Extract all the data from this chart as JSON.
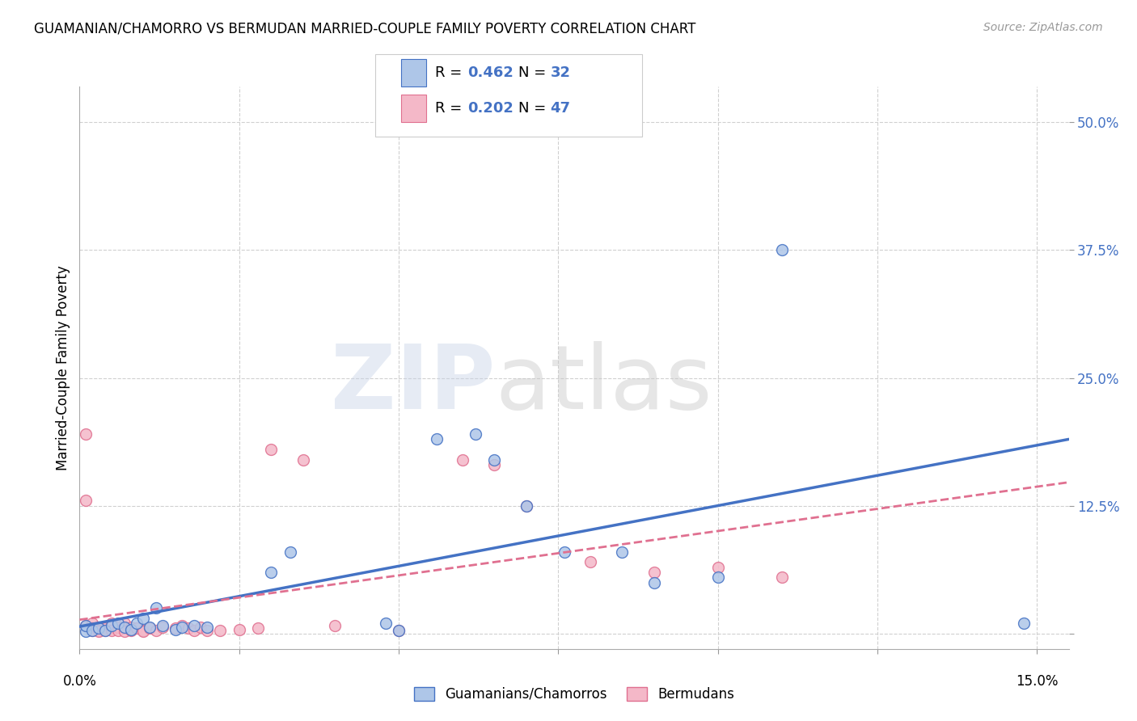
{
  "title": "GUAMANIAN/CHAMORRO VS BERMUDAN MARRIED-COUPLE FAMILY POVERTY CORRELATION CHART",
  "source": "Source: ZipAtlas.com",
  "ylabel": "Married-Couple Family Poverty",
  "legend_label1": "Guamanians/Chamorros",
  "legend_label2": "Bermudans",
  "R1": "0.462",
  "N1": "32",
  "R2": "0.202",
  "N2": "47",
  "xlim": [
    0.0,
    0.155
  ],
  "ylim": [
    -0.015,
    0.535
  ],
  "ytick_vals": [
    0.0,
    0.125,
    0.25,
    0.375,
    0.5
  ],
  "ytick_labels": [
    "",
    "12.5%",
    "25.0%",
    "37.5%",
    "50.0%"
  ],
  "xtick_vals": [
    0.0,
    0.025,
    0.05,
    0.075,
    0.1,
    0.125,
    0.15
  ],
  "color_blue": "#aec6e8",
  "color_pink": "#f4b8c8",
  "line_blue": "#4472c4",
  "line_pink": "#e07090",
  "grid_color": "#d0d0d0",
  "guamanian_x": [
    0.001,
    0.001,
    0.002,
    0.003,
    0.004,
    0.005,
    0.006,
    0.007,
    0.008,
    0.009,
    0.01,
    0.011,
    0.012,
    0.013,
    0.015,
    0.016,
    0.018,
    0.02,
    0.03,
    0.033,
    0.048,
    0.05,
    0.056,
    0.062,
    0.065,
    0.07,
    0.076,
    0.085,
    0.09,
    0.1,
    0.11,
    0.148
  ],
  "guamanian_y": [
    0.002,
    0.008,
    0.003,
    0.005,
    0.003,
    0.008,
    0.01,
    0.006,
    0.004,
    0.01,
    0.015,
    0.006,
    0.025,
    0.008,
    0.004,
    0.006,
    0.008,
    0.006,
    0.06,
    0.08,
    0.01,
    0.003,
    0.19,
    0.195,
    0.17,
    0.125,
    0.08,
    0.08,
    0.05,
    0.055,
    0.375,
    0.01
  ],
  "bermudan_x": [
    0.001,
    0.001,
    0.001,
    0.002,
    0.002,
    0.002,
    0.003,
    0.003,
    0.003,
    0.004,
    0.004,
    0.005,
    0.005,
    0.005,
    0.006,
    0.006,
    0.007,
    0.007,
    0.007,
    0.008,
    0.008,
    0.009,
    0.01,
    0.01,
    0.011,
    0.012,
    0.013,
    0.015,
    0.016,
    0.017,
    0.018,
    0.019,
    0.02,
    0.022,
    0.025,
    0.028,
    0.03,
    0.035,
    0.04,
    0.05,
    0.06,
    0.065,
    0.07,
    0.08,
    0.09,
    0.1,
    0.11
  ],
  "bermudan_y": [
    0.195,
    0.13,
    0.008,
    0.01,
    0.005,
    0.003,
    0.006,
    0.003,
    0.002,
    0.005,
    0.003,
    0.005,
    0.01,
    0.003,
    0.006,
    0.003,
    0.01,
    0.005,
    0.002,
    0.006,
    0.003,
    0.005,
    0.003,
    0.002,
    0.005,
    0.003,
    0.006,
    0.005,
    0.008,
    0.005,
    0.003,
    0.006,
    0.003,
    0.003,
    0.004,
    0.005,
    0.18,
    0.17,
    0.008,
    0.003,
    0.17,
    0.165,
    0.125,
    0.07,
    0.06,
    0.065,
    0.055
  ]
}
